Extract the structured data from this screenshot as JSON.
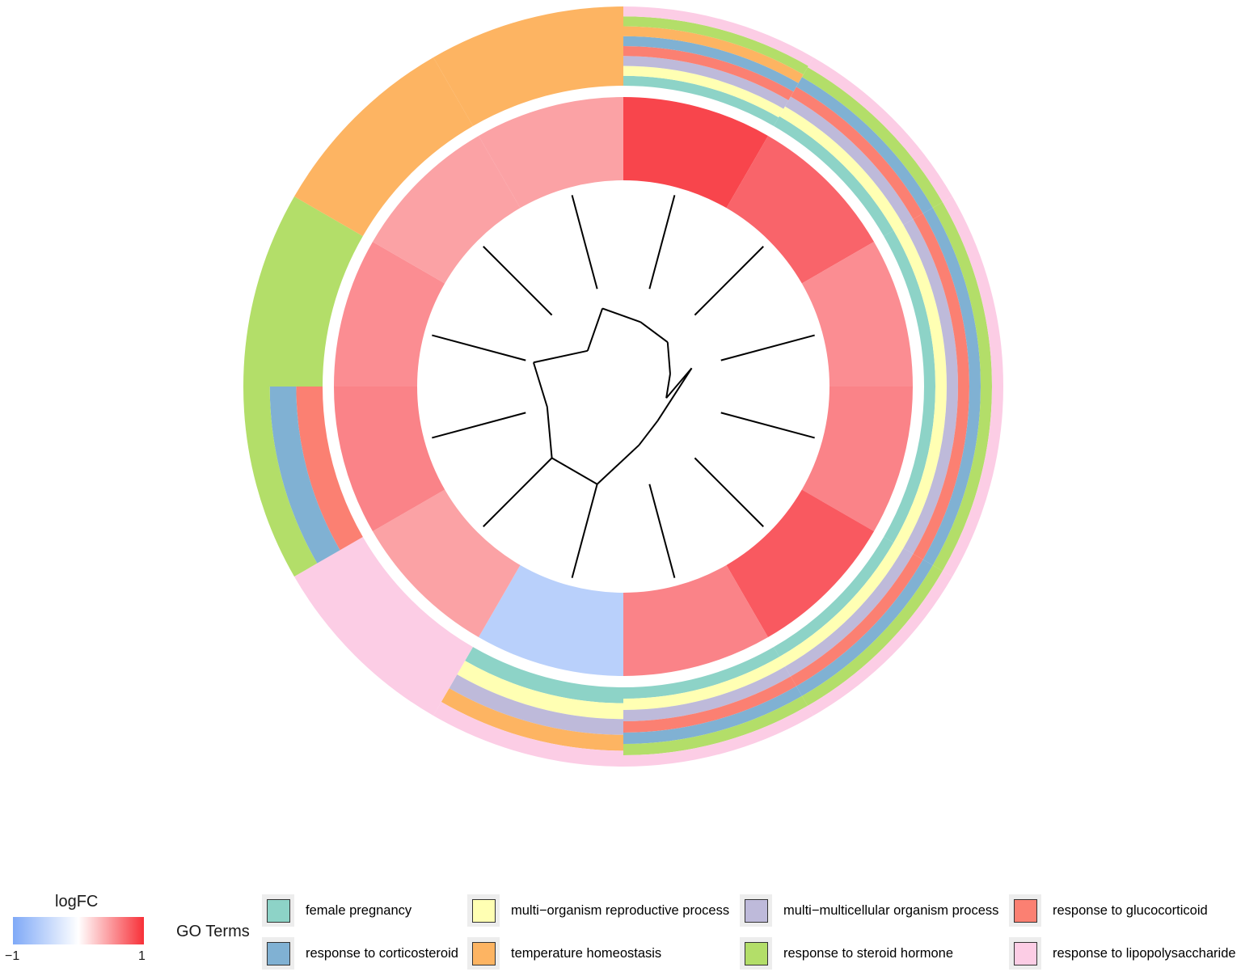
{
  "chart_data": {
    "type": "circular-dendrogram-heatmap",
    "genes": 12,
    "logfc": [
      0.9,
      0.75,
      0.55,
      0.6,
      0.8,
      0.6,
      -0.55,
      0.45,
      0.6,
      0.55,
      0.45,
      0.45
    ],
    "go_terms": [
      {
        "name": "female pregnancy",
        "color": "#8DD3C7"
      },
      {
        "name": "multi−organism reproductive process",
        "color": "#FFFFB3"
      },
      {
        "name": "multi−multicellular organism process",
        "color": "#BEBADA"
      },
      {
        "name": "response to glucocorticoid",
        "color": "#FB8072"
      },
      {
        "name": "response to corticosteroid",
        "color": "#80B1D3"
      },
      {
        "name": "temperature homeostasis",
        "color": "#FDB462"
      },
      {
        "name": "response to steroid hormone",
        "color": "#B3DE69"
      },
      {
        "name": "response to lipopolysaccharide",
        "color": "#FCCDE5"
      }
    ],
    "gene_terms": [
      [
        0,
        1,
        2,
        3,
        4,
        5,
        6,
        7
      ],
      [
        0,
        1,
        2,
        3,
        4,
        6,
        7
      ],
      [
        0,
        1,
        2,
        3,
        4,
        6,
        7
      ],
      [
        0,
        1,
        2,
        3,
        4,
        6,
        7
      ],
      [
        0,
        1,
        2,
        3,
        4,
        6,
        7
      ],
      [
        0,
        1,
        2,
        3,
        4,
        6,
        7
      ],
      [
        0,
        1,
        2,
        5,
        7
      ],
      [
        7
      ],
      [
        3,
        4,
        6
      ],
      [
        6
      ],
      [
        5
      ],
      [
        5
      ]
    ],
    "dendrogram_edges": [
      [
        0,
        0.33,
        12,
        0.33
      ],
      [
        12,
        0.33,
        1,
        0.31
      ],
      [
        1,
        0.31,
        13,
        0.31
      ],
      [
        13,
        0.31,
        2,
        0.24
      ],
      [
        2,
        0.24,
        3,
        0.22
      ],
      [
        3,
        0.22,
        14,
        0.35
      ],
      [
        14,
        0.35,
        4,
        0.24
      ],
      [
        4,
        0.24,
        5,
        0.3
      ],
      [
        5,
        0.3,
        6,
        0.5
      ],
      [
        6,
        0.5,
        7,
        0.5
      ],
      [
        7,
        0.5,
        8,
        0.39
      ],
      [
        8,
        0.39,
        9,
        0.46
      ],
      [
        9,
        0.46,
        10,
        0.25
      ],
      [
        10,
        0.25,
        11,
        0.4
      ],
      [
        11,
        0.4,
        0,
        0.33
      ]
    ],
    "legend": {
      "logfc_title": "logFC",
      "logfc_min": "−1",
      "logfc_max": "1",
      "go_title": "GO Terms"
    }
  }
}
